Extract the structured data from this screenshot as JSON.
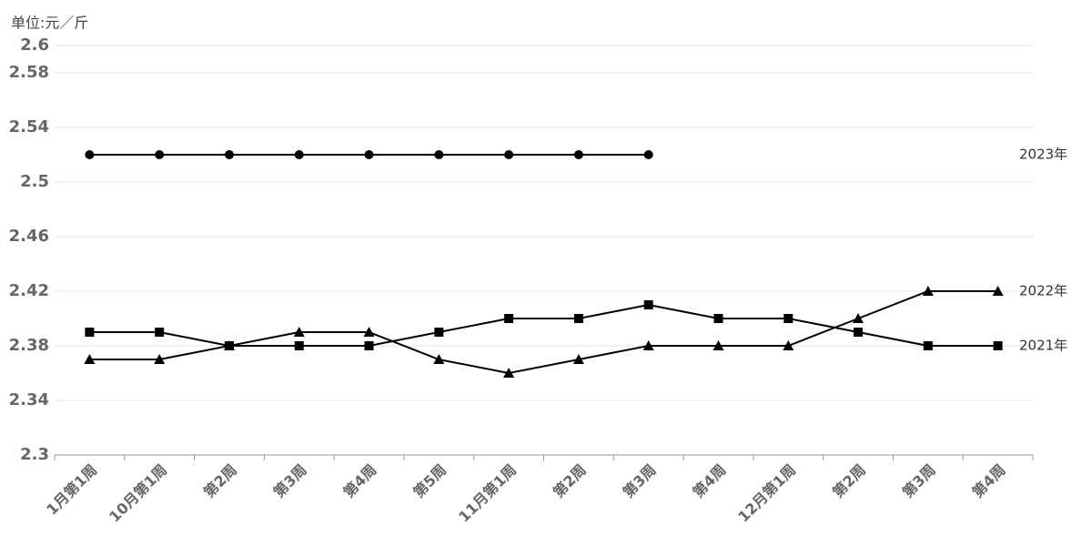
{
  "chart_data": {
    "type": "line",
    "unit_label": "单位:元／斤",
    "categories": [
      "1月第1周",
      "10月第1周",
      "第2周",
      "第3周",
      "第4周",
      "第5周",
      "11月第1周",
      "第2周",
      "第3周",
      "第4周",
      "12月第1周",
      "第2周",
      "第3周",
      "第4周"
    ],
    "series": [
      {
        "name": "2023年",
        "color": "#000000",
        "marker": "circle",
        "values": [
          2.52,
          2.52,
          2.52,
          2.52,
          2.52,
          2.52,
          2.52,
          2.52,
          2.52,
          null,
          null,
          null,
          null,
          null
        ]
      },
      {
        "name": "2022年",
        "color": "#000000",
        "marker": "triangle",
        "values": [
          2.37,
          2.37,
          2.38,
          2.39,
          2.39,
          2.37,
          2.36,
          2.37,
          2.38,
          2.38,
          2.38,
          2.4,
          2.42,
          2.42
        ]
      },
      {
        "name": "2021年",
        "color": "#000000",
        "marker": "square",
        "values": [
          2.39,
          2.39,
          2.38,
          2.38,
          2.38,
          2.39,
          2.4,
          2.4,
          2.41,
          2.4,
          2.4,
          2.39,
          2.38,
          2.38
        ]
      }
    ],
    "ylim": [
      2.3,
      2.6
    ],
    "yticks": [
      2.3,
      2.34,
      2.38,
      2.42,
      2.46,
      2.5,
      2.54,
      2.58,
      2.6
    ],
    "grid": true
  }
}
